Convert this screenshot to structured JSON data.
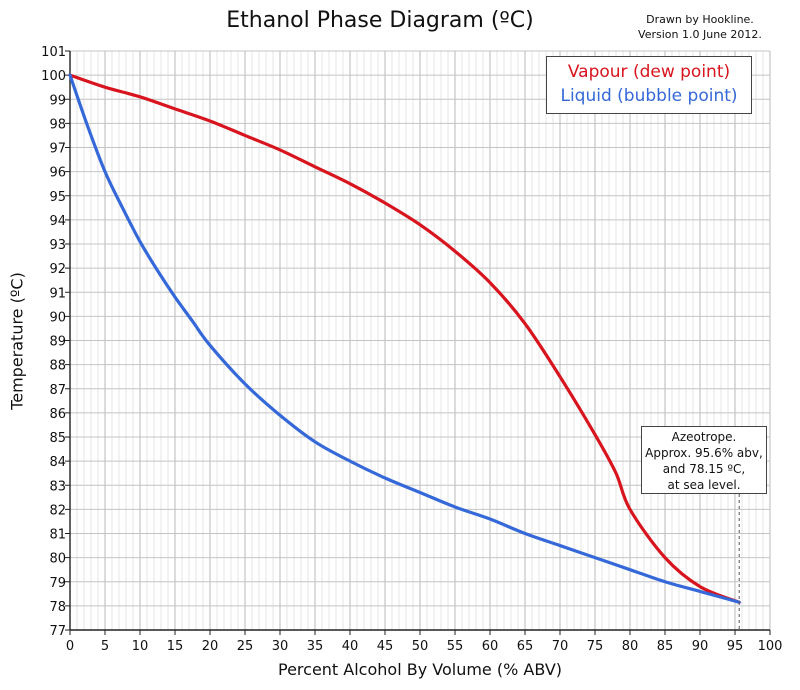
{
  "chart_data": {
    "type": "line",
    "title": "Ethanol Phase Diagram (ºC)",
    "credit_line1": "Drawn by Hookline.",
    "credit_line2": "Version 1.0 June 2012.",
    "xlabel": "Percent Alcohol By Volume (% ABV)",
    "ylabel": "Temperature (ºC)",
    "xlim": [
      0,
      100
    ],
    "ylim": [
      77,
      101
    ],
    "x_ticks": [
      0,
      5,
      10,
      15,
      20,
      25,
      30,
      35,
      40,
      45,
      50,
      55,
      60,
      65,
      70,
      75,
      80,
      85,
      90,
      95,
      100
    ],
    "y_ticks": [
      77,
      78,
      79,
      80,
      81,
      82,
      83,
      84,
      85,
      86,
      87,
      88,
      89,
      90,
      91,
      92,
      93,
      94,
      95,
      96,
      97,
      98,
      99,
      100,
      101
    ],
    "grid": true,
    "legend_position": "top-right",
    "series": [
      {
        "name": "Vapour (dew point)",
        "color": "#d8141e",
        "x": [
          0,
          5,
          10,
          15,
          20,
          25,
          30,
          35,
          40,
          45,
          50,
          55,
          60,
          65,
          70,
          75,
          78,
          80,
          85,
          90,
          95.6
        ],
        "y": [
          100,
          99.5,
          99.1,
          98.6,
          98.1,
          97.5,
          96.9,
          96.2,
          95.5,
          94.7,
          93.8,
          92.7,
          91.4,
          89.7,
          87.5,
          85.1,
          83.5,
          82.0,
          80.0,
          78.8,
          78.15
        ]
      },
      {
        "name": "Liquid (bubble point)",
        "color": "#3568d8",
        "x": [
          0,
          2.5,
          5,
          7.5,
          10,
          12.5,
          15,
          17.5,
          20,
          25,
          30,
          35,
          40,
          45,
          50,
          55,
          60,
          65,
          70,
          75,
          80,
          85,
          90,
          95.6
        ],
        "y": [
          100,
          97.9,
          96.0,
          94.5,
          93.1,
          91.9,
          90.8,
          89.8,
          88.8,
          87.2,
          85.9,
          84.8,
          84.0,
          83.3,
          82.7,
          82.1,
          81.6,
          81.0,
          80.5,
          80.0,
          79.5,
          79.0,
          78.6,
          78.15
        ]
      }
    ],
    "annotation": {
      "x": 95.6,
      "y": 78.15,
      "lines": [
        "Azeotrope.",
        "Approx. 95.6% abv,",
        "and 78.15 ºC,",
        "at sea level."
      ]
    }
  }
}
